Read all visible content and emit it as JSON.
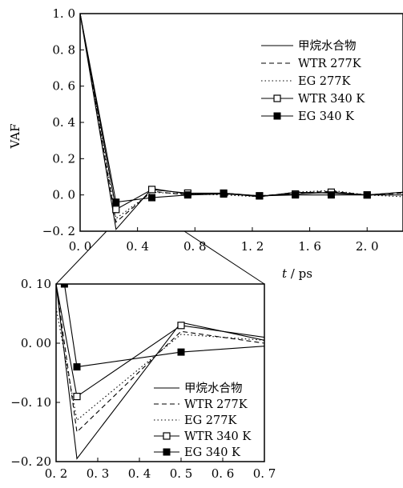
{
  "chart_data": [
    {
      "type": "line",
      "title": "",
      "xlabel": "t / ps",
      "ylabel": "VAF",
      "xlim": [
        0,
        2.25
      ],
      "ylim": [
        -0.2,
        1.0
      ],
      "x_ticks": [
        "0. 0",
        "0. 4",
        "0. 8",
        "1. 2",
        "1. 6",
        "2. 0"
      ],
      "y_ticks": [
        "1. 0",
        "0. 8",
        "0. 6",
        "0. 4",
        "0. 2",
        "0. 0",
        "−0. 2"
      ],
      "legend_position": "right",
      "series": [
        {
          "name": "甲烷水合物",
          "style": "solid",
          "marker": "none",
          "x": [
            0,
            0.25,
            0.5,
            0.75,
            1.0,
            1.25,
            1.5,
            1.75,
            2.0,
            2.25
          ],
          "y": [
            1.0,
            -0.19,
            0.035,
            0.005,
            0.01,
            -0.01,
            0.015,
            0.01,
            0.0,
            0.015
          ]
        },
        {
          "name": "WTR 277K",
          "style": "dashed",
          "marker": "none",
          "x": [
            0,
            0.25,
            0.5,
            0.75,
            1.0,
            1.25,
            1.5,
            1.75,
            2.0,
            2.25
          ],
          "y": [
            1.0,
            -0.15,
            0.02,
            0.0,
            0.01,
            -0.005,
            0.01,
            0.02,
            0.0,
            0.01
          ]
        },
        {
          "name": "EG 277K",
          "style": "dotted",
          "marker": "none",
          "x": [
            0,
            0.25,
            0.5,
            0.75,
            1.0,
            1.25,
            1.5,
            1.75,
            2.0,
            2.25
          ],
          "y": [
            1.0,
            -0.13,
            0.015,
            0.005,
            0.0,
            -0.01,
            0.015,
            0.025,
            0.0,
            -0.01
          ]
        },
        {
          "name": "WTR 340 K",
          "style": "solid",
          "marker": "open-square",
          "x": [
            0,
            0.25,
            0.5,
            0.75,
            1.0,
            1.25,
            1.5,
            1.75,
            2.0,
            2.25
          ],
          "y": [
            1.0,
            -0.08,
            0.03,
            0.01,
            0.01,
            -0.005,
            0.005,
            0.015,
            0.0,
            0.015
          ]
        },
        {
          "name": "EG 340 K",
          "style": "solid",
          "marker": "filled-square",
          "x": [
            0,
            0.25,
            0.5,
            0.75,
            1.0,
            1.25,
            1.5,
            1.75,
            2.0,
            2.25
          ],
          "y": [
            1.0,
            -0.04,
            -0.015,
            0.0,
            0.005,
            -0.005,
            0.0,
            0.0,
            0.0,
            0.0
          ]
        }
      ]
    },
    {
      "type": "line",
      "title": "",
      "xlabel": "",
      "ylabel": "",
      "xlim": [
        0.2,
        0.7
      ],
      "ylim": [
        -0.2,
        0.1
      ],
      "x_ticks": [
        "0. 2",
        "0. 3",
        "0. 4",
        "0. 5",
        "0. 6",
        "0. 7"
      ],
      "y_ticks": [
        "0. 10",
        "0. 00",
        "−0. 10",
        "−0. 20"
      ],
      "legend_position": "lower-right",
      "series": [
        {
          "name": "甲烷水合物",
          "style": "solid",
          "marker": "none",
          "x": [
            0.2,
            0.25,
            0.5,
            0.7
          ],
          "y": [
            0.1,
            -0.195,
            0.035,
            0.005
          ]
        },
        {
          "name": "WTR 277K",
          "style": "dashed",
          "marker": "none",
          "x": [
            0.2,
            0.25,
            0.5,
            0.7
          ],
          "y": [
            0.1,
            -0.15,
            0.02,
            0.0
          ]
        },
        {
          "name": "EG 277K",
          "style": "dotted",
          "marker": "none",
          "x": [
            0.2,
            0.25,
            0.5,
            0.7
          ],
          "y": [
            0.06,
            -0.13,
            0.015,
            0.005
          ]
        },
        {
          "name": "WTR 340 K",
          "style": "solid",
          "marker": "open-square",
          "x": [
            0.2,
            0.25,
            0.5,
            0.7
          ],
          "y": [
            0.1,
            -0.09,
            0.03,
            0.01
          ]
        },
        {
          "name": "EG 340 K",
          "style": "solid",
          "marker": "filled-square",
          "x": [
            0.22,
            0.25,
            0.5,
            0.7
          ],
          "y": [
            0.1,
            -0.04,
            -0.015,
            -0.005
          ]
        }
      ]
    }
  ]
}
